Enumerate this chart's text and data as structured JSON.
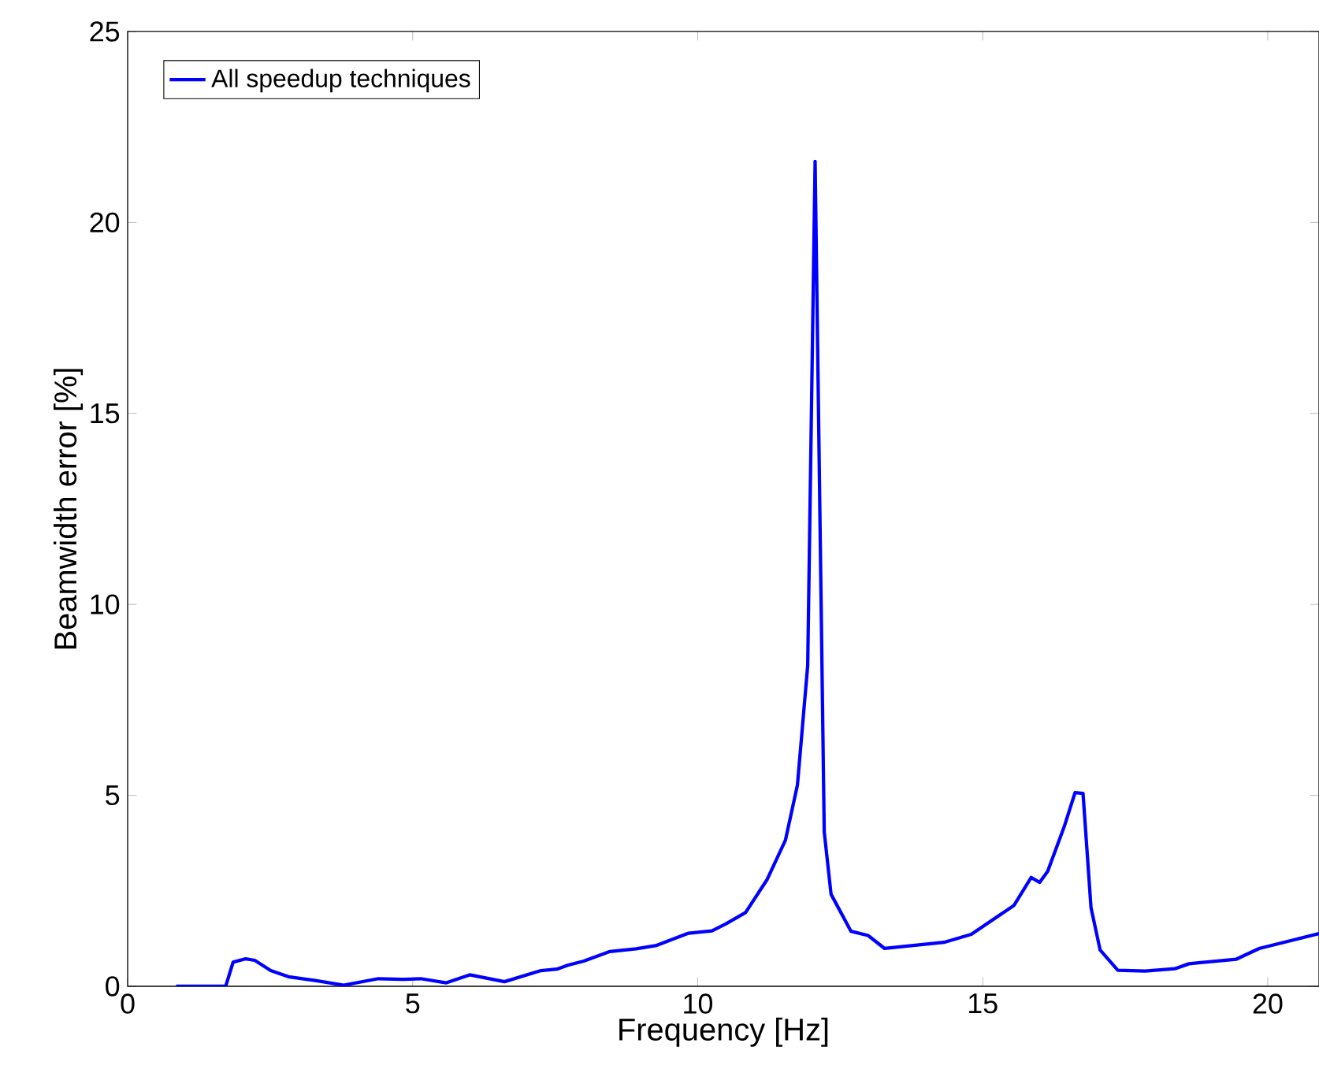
{
  "chart_data": {
    "type": "line",
    "xlabel": "Frequency [Hz]",
    "ylabel": "Beamwidth error [%]",
    "xlim": [
      0,
      20.9
    ],
    "ylim": [
      0,
      25
    ],
    "xticks": [
      0,
      5,
      10,
      15,
      20
    ],
    "yticks": [
      0,
      5,
      10,
      15,
      20,
      25
    ],
    "legend": "top left",
    "grid": false,
    "series": [
      {
        "name": "All speedup techniques",
        "color": "#0000ff",
        "x": [
          0.85,
          1.72,
          1.85,
          2.07,
          2.23,
          2.51,
          2.82,
          3.29,
          3.79,
          4.4,
          4.86,
          5.14,
          5.59,
          6.0,
          6.61,
          7.25,
          7.53,
          7.72,
          8.0,
          8.46,
          8.92,
          9.28,
          9.84,
          10.25,
          10.49,
          10.84,
          11.22,
          11.54,
          11.75,
          11.93,
          12.06,
          12.22,
          12.34,
          12.69,
          12.99,
          13.28,
          14.32,
          14.8,
          15.55,
          15.85,
          16.0,
          16.14,
          16.43,
          16.62,
          16.76,
          16.9,
          17.06,
          17.37,
          17.85,
          18.37,
          18.62,
          19.45,
          19.85,
          20.9
        ],
        "values": [
          0,
          0,
          0.63,
          0.72,
          0.68,
          0.41,
          0.25,
          0.15,
          0.03,
          0.2,
          0.18,
          0.2,
          0.09,
          0.3,
          0.12,
          0.41,
          0.45,
          0.55,
          0.66,
          0.91,
          0.98,
          1.07,
          1.39,
          1.45,
          1.63,
          1.93,
          2.8,
          3.83,
          5.27,
          8.4,
          21.6,
          4.04,
          2.41,
          1.44,
          1.33,
          0.99,
          1.15,
          1.36,
          2.12,
          2.85,
          2.72,
          3.01,
          4.18,
          5.07,
          5.05,
          2.06,
          0.95,
          0.42,
          0.4,
          0.46,
          0.59,
          0.71,
          0.99,
          1.38
        ]
      }
    ]
  }
}
